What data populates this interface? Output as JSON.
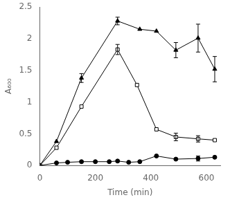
{
  "chart_data": {
    "type": "line",
    "xlabel": "Time (min)",
    "ylabel": "A₆₀₀",
    "xlim": [
      0,
      650
    ],
    "ylim": [
      0,
      2.5
    ],
    "xticks": [
      0,
      200,
      400,
      600
    ],
    "yticks": [
      0,
      0.5,
      1,
      1.5,
      2,
      2.5
    ],
    "grid": false,
    "color": "black",
    "series": [
      {
        "marker": "triangle",
        "line_style": "solid",
        "x": [
          0,
          60,
          150,
          280,
          360,
          420,
          490,
          570,
          630
        ],
        "values": [
          0,
          0.38,
          1.38,
          2.28,
          2.15,
          2.12,
          1.82,
          2.01,
          1.52
        ],
        "yerr": [
          0,
          0.0,
          0.07,
          0.06,
          0.0,
          0.0,
          0.12,
          0.22,
          0.2
        ]
      },
      {
        "marker": "open_square",
        "line_style": "solid",
        "x": [
          0,
          60,
          150,
          280,
          350,
          420,
          490,
          570,
          630
        ],
        "values": [
          0,
          0.28,
          0.93,
          1.83,
          1.27,
          0.57,
          0.45,
          0.42,
          0.4
        ],
        "yerr": [
          0,
          0.0,
          0.0,
          0.08,
          0.0,
          0.0,
          0.06,
          0.05,
          0.0
        ]
      },
      {
        "marker": "circle",
        "line_style": "solid",
        "x": [
          0,
          60,
          100,
          150,
          200,
          250,
          280,
          320,
          360,
          420,
          490,
          570,
          630
        ],
        "values": [
          0,
          0.04,
          0.05,
          0.06,
          0.06,
          0.06,
          0.07,
          0.05,
          0.06,
          0.15,
          0.1,
          0.11,
          0.13
        ],
        "yerr": [
          0,
          0,
          0,
          0,
          0,
          0,
          0,
          0,
          0,
          0,
          0,
          0.04,
          0
        ]
      }
    ]
  }
}
